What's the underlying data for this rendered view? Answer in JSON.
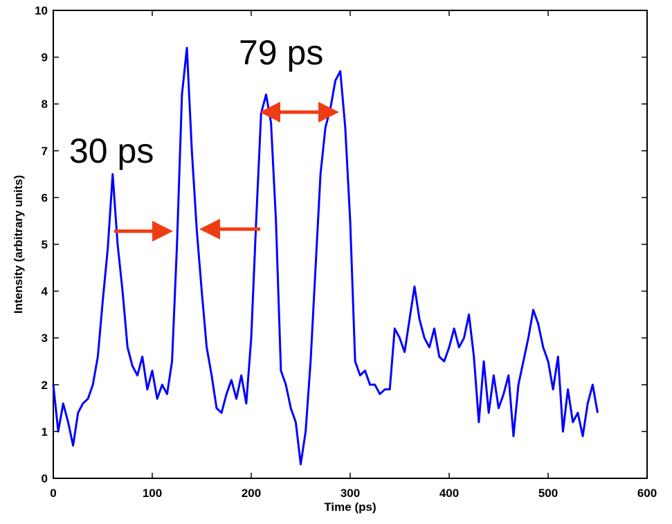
{
  "chart_data": {
    "type": "line",
    "xlabel": "Time (ps)",
    "ylabel": "Intensity (arbitrary units)",
    "x": [
      0,
      5,
      10,
      15,
      20,
      25,
      30,
      35,
      40,
      45,
      50,
      55,
      60,
      65,
      70,
      75,
      80,
      85,
      90,
      95,
      100,
      105,
      110,
      115,
      120,
      125,
      130,
      135,
      140,
      145,
      150,
      155,
      160,
      165,
      170,
      175,
      180,
      185,
      190,
      195,
      200,
      205,
      210,
      215,
      220,
      225,
      230,
      235,
      240,
      245,
      250,
      255,
      260,
      265,
      270,
      275,
      280,
      285,
      290,
      295,
      300,
      305,
      310,
      315,
      320,
      325,
      330,
      335,
      340,
      345,
      350,
      355,
      360,
      365,
      370,
      375,
      380,
      385,
      390,
      395,
      400,
      405,
      410,
      415,
      420,
      425,
      430,
      435,
      440,
      445,
      450,
      455,
      460,
      465,
      470,
      475,
      480,
      485,
      490,
      495,
      500,
      505,
      510,
      515,
      520,
      525,
      530,
      535,
      540,
      545,
      550
    ],
    "series": [
      {
        "name": "Intensity",
        "color": "#0000ff",
        "values": [
          2.0,
          1.0,
          1.6,
          1.2,
          0.7,
          1.4,
          1.6,
          1.7,
          2.0,
          2.6,
          3.8,
          4.9,
          6.5,
          5.0,
          4.0,
          2.8,
          2.4,
          2.2,
          2.6,
          1.9,
          2.3,
          1.7,
          2.0,
          1.8,
          2.5,
          5.0,
          8.2,
          9.2,
          7.0,
          5.3,
          4.0,
          2.8,
          2.2,
          1.5,
          1.4,
          1.8,
          2.1,
          1.7,
          2.2,
          1.6,
          3.0,
          5.5,
          7.8,
          8.2,
          7.6,
          5.5,
          2.3,
          2.0,
          1.5,
          1.2,
          0.3,
          1.0,
          2.5,
          4.5,
          6.5,
          7.5,
          7.9,
          8.5,
          8.7,
          7.5,
          5.5,
          2.5,
          2.2,
          2.3,
          2.0,
          2.0,
          1.8,
          1.9,
          1.9,
          3.2,
          3.0,
          2.7,
          3.4,
          4.1,
          3.4,
          3.0,
          2.8,
          3.2,
          2.6,
          2.5,
          2.8,
          3.2,
          2.8,
          3.0,
          3.5,
          2.6,
          1.2,
          2.5,
          1.4,
          2.2,
          1.5,
          1.8,
          2.2,
          0.9,
          2.0,
          2.5,
          3.0,
          3.6,
          3.3,
          2.8,
          2.5,
          1.9,
          2.6,
          1.0,
          1.9,
          1.2,
          1.4,
          0.9,
          1.6,
          2.0,
          1.4
        ]
      }
    ],
    "xlim": [
      0,
      600
    ],
    "xticks": [
      0,
      100,
      200,
      300,
      400,
      500,
      600
    ],
    "ylim": [
      0,
      10
    ],
    "yticks": [
      0,
      1,
      2,
      3,
      4,
      5,
      6,
      7,
      8,
      9,
      10
    ],
    "annotations": [
      "30 ps",
      "79 ps"
    ],
    "annotation_color": "#f03c14"
  }
}
